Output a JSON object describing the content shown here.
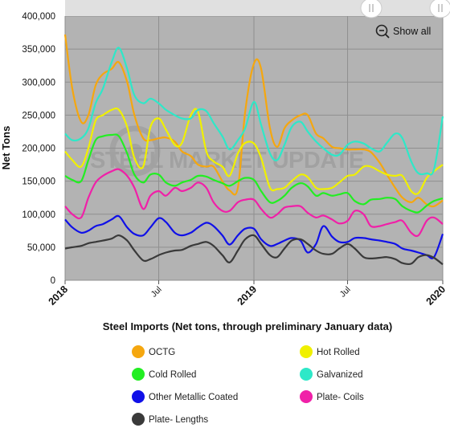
{
  "chart_data": {
    "type": "line",
    "title": "",
    "xlabel": "Steel Imports (Net tons, through preliminary January data)",
    "ylabel": "Net Tons",
    "ylim": [
      0,
      400000
    ],
    "y_ticks": [
      "0",
      "50,000",
      "100,000",
      "150,000",
      "200,000",
      "250,000",
      "300,000",
      "350,000",
      "400,000"
    ],
    "x_range": [
      "2018-01",
      "2020-01"
    ],
    "x_ticks": [
      {
        "at": "2018-01",
        "label": "2018",
        "bold": true
      },
      {
        "at": "2018-07",
        "label": "Jul",
        "bold": false
      },
      {
        "at": "2019-01",
        "label": "2019",
        "bold": true
      },
      {
        "at": "2019-07",
        "label": "Jul",
        "bold": false
      },
      {
        "at": "2020-01",
        "label": "2020",
        "bold": true
      }
    ],
    "grid": true,
    "legend_position": "bottom",
    "watermark": "STEEL MARKET UPDATE",
    "reset_zoom_label": "Show all",
    "x": [
      "2018-01-01",
      "2018-01-15",
      "2018-02-01",
      "2018-02-15",
      "2018-03-01",
      "2018-03-15",
      "2018-04-01",
      "2018-04-15",
      "2018-05-01",
      "2018-05-15",
      "2018-06-01",
      "2018-06-15",
      "2018-07-01",
      "2018-07-15",
      "2018-08-01",
      "2018-08-15",
      "2018-09-01",
      "2018-09-15",
      "2018-10-01",
      "2018-10-15",
      "2018-11-01",
      "2018-11-15",
      "2018-12-01",
      "2018-12-15",
      "2019-01-01",
      "2019-01-15",
      "2019-02-01",
      "2019-02-15",
      "2019-03-01",
      "2019-03-15",
      "2019-04-01",
      "2019-04-15",
      "2019-05-01",
      "2019-05-15",
      "2019-06-01",
      "2019-06-15",
      "2019-07-01",
      "2019-07-15",
      "2019-08-01",
      "2019-08-15",
      "2019-09-01",
      "2019-09-15",
      "2019-10-01",
      "2019-10-15",
      "2019-11-01",
      "2019-11-15",
      "2019-12-01",
      "2019-12-15",
      "2020-01-01"
    ],
    "series": [
      {
        "name": "OCTG",
        "color": "#F5A70F",
        "values": [
          372000,
          290000,
          240000,
          250000,
          295000,
          312000,
          320000,
          330000,
          300000,
          250000,
          215000,
          212000,
          215000,
          216000,
          210000,
          195000,
          188000,
          175000,
          172000,
          172000,
          150000,
          136000,
          140000,
          255000,
          328000,
          320000,
          230000,
          202000,
          230000,
          242000,
          250000,
          250000,
          222000,
          215000,
          202000,
          200000,
          198000,
          198000,
          198000,
          194000,
          178000,
          160000,
          140000,
          125000,
          118000,
          125000,
          115000,
          112000,
          121000
        ]
      },
      {
        "name": "Hot Rolled",
        "color": "#F0F000",
        "values": [
          195000,
          182000,
          172000,
          200000,
          242000,
          250000,
          258000,
          258000,
          232000,
          185000,
          172000,
          232000,
          245000,
          228000,
          205000,
          208000,
          250000,
          255000,
          195000,
          180000,
          172000,
          158000,
          192000,
          208000,
          207000,
          185000,
          140000,
          138000,
          140000,
          150000,
          160000,
          156000,
          140000,
          138000,
          140000,
          148000,
          158000,
          160000,
          172000,
          172000,
          165000,
          160000,
          158000,
          158000,
          135000,
          132000,
          155000,
          165000,
          175000
        ]
      },
      {
        "name": "Cold Rolled",
        "color": "#22EE22",
        "values": [
          158000,
          152000,
          150000,
          182000,
          212000,
          218000,
          220000,
          218000,
          192000,
          160000,
          148000,
          160000,
          160000,
          148000,
          143000,
          148000,
          152000,
          158000,
          157000,
          152000,
          147000,
          143000,
          150000,
          155000,
          152000,
          135000,
          118000,
          120000,
          128000,
          140000,
          147000,
          142000,
          128000,
          132000,
          128000,
          130000,
          132000,
          120000,
          115000,
          122000,
          123000,
          125000,
          123000,
          112000,
          105000,
          103000,
          113000,
          120000,
          124000
        ]
      },
      {
        "name": "Galvanized",
        "color": "#2EE8C8",
        "values": [
          222000,
          212000,
          215000,
          230000,
          268000,
          290000,
          330000,
          352000,
          320000,
          280000,
          268000,
          275000,
          268000,
          258000,
          250000,
          245000,
          245000,
          258000,
          256000,
          238000,
          218000,
          198000,
          212000,
          230000,
          270000,
          235000,
          192000,
          182000,
          205000,
          232000,
          240000,
          225000,
          210000,
          200000,
          190000,
          190000,
          205000,
          210000,
          207000,
          200000,
          195000,
          208000,
          222000,
          215000,
          180000,
          162000,
          162000,
          168000,
          248000
        ]
      },
      {
        "name": "Other Metallic Coated",
        "color": "#1010E8",
        "values": [
          92000,
          80000,
          72000,
          75000,
          82000,
          85000,
          92000,
          97000,
          80000,
          70000,
          68000,
          80000,
          94000,
          88000,
          72000,
          68000,
          72000,
          80000,
          87000,
          82000,
          68000,
          54000,
          68000,
          78000,
          78000,
          62000,
          52000,
          55000,
          60000,
          64000,
          60000,
          42000,
          55000,
          82000,
          66000,
          58000,
          58000,
          64000,
          64000,
          62000,
          60000,
          58000,
          55000,
          48000,
          45000,
          42000,
          38000,
          35000,
          70000
        ]
      },
      {
        "name": "Plate- Coils",
        "color": "#F020A8",
        "values": [
          112000,
          100000,
          95000,
          125000,
          148000,
          158000,
          165000,
          168000,
          158000,
          140000,
          108000,
          128000,
          135000,
          128000,
          140000,
          135000,
          140000,
          148000,
          140000,
          118000,
          105000,
          105000,
          118000,
          122000,
          122000,
          108000,
          95000,
          100000,
          110000,
          112000,
          112000,
          102000,
          95000,
          98000,
          92000,
          86000,
          90000,
          105000,
          100000,
          82000,
          82000,
          85000,
          88000,
          90000,
          72000,
          68000,
          90000,
          95000,
          85000
        ]
      },
      {
        "name": "Plate- Lengths",
        "color": "#3A3A3A",
        "values": [
          48000,
          50000,
          52000,
          56000,
          58000,
          60000,
          63000,
          68000,
          60000,
          45000,
          30000,
          32000,
          38000,
          42000,
          45000,
          46000,
          52000,
          55000,
          58000,
          52000,
          38000,
          27000,
          45000,
          62000,
          68000,
          55000,
          38000,
          35000,
          48000,
          60000,
          62000,
          55000,
          45000,
          40000,
          40000,
          48000,
          55000,
          48000,
          35000,
          33000,
          34000,
          35000,
          32000,
          26000,
          25000,
          35000,
          38000,
          34000,
          24000
        ]
      }
    ]
  }
}
